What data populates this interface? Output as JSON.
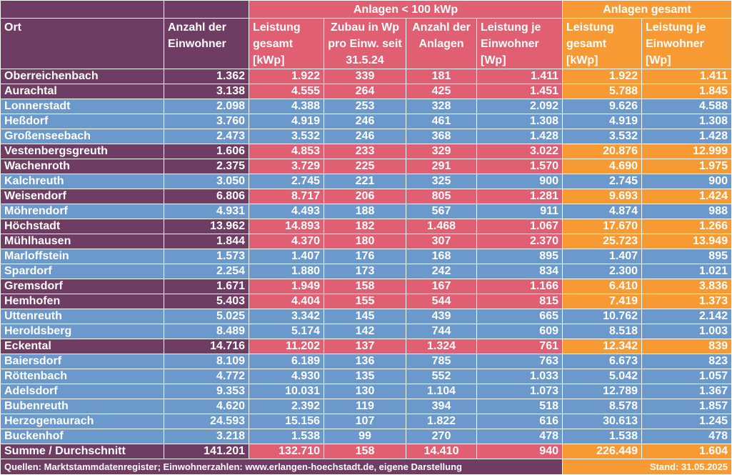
{
  "header": {
    "group_small": "Anlagen < 100 kWp",
    "group_total": "Anlagen gesamt",
    "col_ort": "Ort",
    "col_einwohner": "Anzahl der Einwohner",
    "col_leistung": "Leistung gesamt [kWp]",
    "col_zubau": "Zubau in Wp pro Einw. seit 31.5.24",
    "col_anzahl": "Anzahl der Anlagen",
    "col_leistung_je": "Leistung je Einwohner [Wp]",
    "col_g_leistung": "Leistung gesamt [kWp]",
    "col_g_leistung_je": "Leistung je Einwohner [Wp]"
  },
  "rows": [
    {
      "ort": "Oberreichenbach",
      "einw": "1.362",
      "leistung": "1.922",
      "zubau": "339",
      "anzahl": "181",
      "je": "1.411",
      "g_leistung": "1.922",
      "g_je": "1.411",
      "color": "purple"
    },
    {
      "ort": "Aurachtal",
      "einw": "3.138",
      "leistung": "4.555",
      "zubau": "264",
      "anzahl": "425",
      "je": "1.451",
      "g_leistung": "5.788",
      "g_je": "1.845",
      "color": "purple"
    },
    {
      "ort": "Lonnerstadt",
      "einw": "2.098",
      "leistung": "4.388",
      "zubau": "253",
      "anzahl": "328",
      "je": "2.092",
      "g_leistung": "9.626",
      "g_je": "4.588",
      "color": "blue"
    },
    {
      "ort": "Heßdorf",
      "einw": "3.760",
      "leistung": "4.919",
      "zubau": "246",
      "anzahl": "461",
      "je": "1.308",
      "g_leistung": "4.919",
      "g_je": "1.308",
      "color": "blue"
    },
    {
      "ort": "Großenseebach",
      "einw": "2.473",
      "leistung": "3.532",
      "zubau": "246",
      "anzahl": "368",
      "je": "1.428",
      "g_leistung": "3.532",
      "g_je": "1.428",
      "color": "blue"
    },
    {
      "ort": "Vestenbergsgreuth",
      "einw": "1.606",
      "leistung": "4.853",
      "zubau": "233",
      "anzahl": "329",
      "je": "3.022",
      "g_leistung": "20.876",
      "g_je": "12.999",
      "color": "purple"
    },
    {
      "ort": "Wachenroth",
      "einw": "2.375",
      "leistung": "3.729",
      "zubau": "225",
      "anzahl": "291",
      "je": "1.570",
      "g_leistung": "4.690",
      "g_je": "1.975",
      "color": "purple"
    },
    {
      "ort": "Kalchreuth",
      "einw": "3.050",
      "leistung": "2.745",
      "zubau": "221",
      "anzahl": "325",
      "je": "900",
      "g_leistung": "2.745",
      "g_je": "900",
      "color": "blue"
    },
    {
      "ort": "Weisendorf",
      "einw": "6.806",
      "leistung": "8.717",
      "zubau": "206",
      "anzahl": "805",
      "je": "1.281",
      "g_leistung": "9.693",
      "g_je": "1.424",
      "color": "purple"
    },
    {
      "ort": "Möhrendorf",
      "einw": "4.931",
      "leistung": "4.493",
      "zubau": "188",
      "anzahl": "567",
      "je": "911",
      "g_leistung": "4.874",
      "g_je": "988",
      "color": "blue"
    },
    {
      "ort": "Höchstadt",
      "einw": "13.962",
      "leistung": "14.893",
      "zubau": "182",
      "anzahl": "1.468",
      "je": "1.067",
      "g_leistung": "17.670",
      "g_je": "1.266",
      "color": "purple"
    },
    {
      "ort": "Mühlhausen",
      "einw": "1.844",
      "leistung": "4.370",
      "zubau": "180",
      "anzahl": "307",
      "je": "2.370",
      "g_leistung": "25.723",
      "g_je": "13.949",
      "color": "purple"
    },
    {
      "ort": "Marloffstein",
      "einw": "1.573",
      "leistung": "1.407",
      "zubau": "176",
      "anzahl": "168",
      "je": "895",
      "g_leistung": "1.407",
      "g_je": "895",
      "color": "blue"
    },
    {
      "ort": "Spardorf",
      "einw": "2.254",
      "leistung": "1.880",
      "zubau": "173",
      "anzahl": "242",
      "je": "834",
      "g_leistung": "2.300",
      "g_je": "1.021",
      "color": "blue"
    },
    {
      "ort": "Gremsdorf",
      "einw": "1.671",
      "leistung": "1.949",
      "zubau": "158",
      "anzahl": "167",
      "je": "1.166",
      "g_leistung": "6.410",
      "g_je": "3.836",
      "color": "purple"
    },
    {
      "ort": "Hemhofen",
      "einw": "5.403",
      "leistung": "4.404",
      "zubau": "155",
      "anzahl": "544",
      "je": "815",
      "g_leistung": "7.419",
      "g_je": "1.373",
      "color": "purple"
    },
    {
      "ort": "Uttenreuth",
      "einw": "5.025",
      "leistung": "3.342",
      "zubau": "145",
      "anzahl": "439",
      "je": "665",
      "g_leistung": "10.762",
      "g_je": "2.142",
      "color": "blue"
    },
    {
      "ort": "Heroldsberg",
      "einw": "8.489",
      "leistung": "5.174",
      "zubau": "142",
      "anzahl": "744",
      "je": "609",
      "g_leistung": "8.518",
      "g_je": "1.003",
      "color": "blue"
    },
    {
      "ort": "Eckental",
      "einw": "14.716",
      "leistung": "11.202",
      "zubau": "137",
      "anzahl": "1.324",
      "je": "761",
      "g_leistung": "12.342",
      "g_je": "839",
      "color": "purple"
    },
    {
      "ort": "Baiersdorf",
      "einw": "8.109",
      "leistung": "6.189",
      "zubau": "136",
      "anzahl": "785",
      "je": "763",
      "g_leistung": "6.673",
      "g_je": "823",
      "color": "blue"
    },
    {
      "ort": "Röttenbach",
      "einw": "4.772",
      "leistung": "4.930",
      "zubau": "135",
      "anzahl": "552",
      "je": "1.033",
      "g_leistung": "5.042",
      "g_je": "1.057",
      "color": "blue"
    },
    {
      "ort": "Adelsdorf",
      "einw": "9.353",
      "leistung": "10.031",
      "zubau": "130",
      "anzahl": "1.104",
      "je": "1.073",
      "g_leistung": "12.789",
      "g_je": "1.367",
      "color": "blue"
    },
    {
      "ort": "Bubenreuth",
      "einw": "4.620",
      "leistung": "2.392",
      "zubau": "119",
      "anzahl": "394",
      "je": "518",
      "g_leistung": "8.578",
      "g_je": "1.857",
      "color": "blue"
    },
    {
      "ort": "Herzogenaurach",
      "einw": "24.593",
      "leistung": "15.156",
      "zubau": "107",
      "anzahl": "1.822",
      "je": "616",
      "g_leistung": "30.613",
      "g_je": "1.245",
      "color": "blue"
    },
    {
      "ort": "Buckenhof",
      "einw": "3.218",
      "leistung": "1.538",
      "zubau": "99",
      "anzahl": "270",
      "je": "478",
      "g_leistung": "1.538",
      "g_je": "478",
      "color": "blue"
    }
  ],
  "summary": {
    "ort": "Summe / Durchschnitt",
    "einw": "141.201",
    "leistung": "132.710",
    "zubau": "158",
    "anzahl": "14.410",
    "je": "940",
    "g_leistung": "226.449",
    "g_je": "1.604"
  },
  "footer": {
    "sources": "Quellen: Marktstammdatenregister; Einwohnerzahlen: www.erlangen-hoechstadt.de, eigene Darstellung",
    "stand": "Stand: 31.05.2025"
  },
  "colors": {
    "purple": "#6f3c63",
    "pink": "#e05f72",
    "orange": "#f79a33",
    "blue": "#6b99cc"
  }
}
